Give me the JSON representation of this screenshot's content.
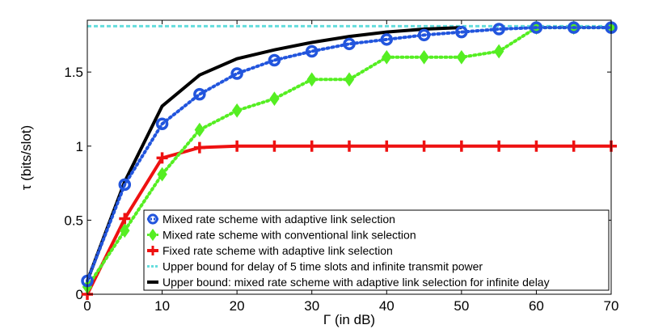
{
  "chart_data": {
    "type": "line",
    "title": "",
    "xlabel": "Γ (in dB)",
    "ylabel": "τ (bits/slot)",
    "xlim": [
      0,
      70
    ],
    "ylim": [
      0,
      1.85
    ],
    "xticks": [
      0,
      10,
      20,
      30,
      40,
      50,
      60,
      70
    ],
    "yticks": [
      0,
      0.5,
      1,
      1.5
    ],
    "ytick_labels": [
      "0",
      "0.5",
      "1",
      "1.5"
    ],
    "grid": false,
    "legend_position": "bottom-right",
    "series": [
      {
        "name": "Mixed rate scheme with adaptive link selection",
        "color": "#2255dd",
        "style": "dotted",
        "marker": "circle",
        "x": [
          0,
          5,
          10,
          15,
          20,
          25,
          30,
          35,
          40,
          45,
          50,
          55,
          60,
          65,
          70
        ],
        "y": [
          0.09,
          0.74,
          1.15,
          1.35,
          1.49,
          1.58,
          1.64,
          1.69,
          1.72,
          1.75,
          1.77,
          1.79,
          1.8,
          1.8,
          1.8
        ]
      },
      {
        "name": "Mixed rate scheme with conventional link selection",
        "color": "#55ee22",
        "style": "dotted",
        "marker": "diamond",
        "x": [
          0,
          5,
          10,
          15,
          20,
          25,
          30,
          35,
          40,
          45,
          50,
          55,
          60,
          65,
          70
        ],
        "y": [
          0.05,
          0.43,
          0.81,
          1.11,
          1.24,
          1.32,
          1.45,
          1.45,
          1.6,
          1.6,
          1.6,
          1.64,
          1.8,
          1.8,
          1.8
        ]
      },
      {
        "name": "Fixed rate scheme with adaptive link selection",
        "color": "#ee1111",
        "style": "solid",
        "marker": "plus",
        "x": [
          0,
          5,
          10,
          15,
          20,
          25,
          30,
          35,
          40,
          45,
          50,
          55,
          60,
          65,
          70
        ],
        "y": [
          0.0,
          0.51,
          0.92,
          0.99,
          1.0,
          1.0,
          1.0,
          1.0,
          1.0,
          1.0,
          1.0,
          1.0,
          1.0,
          1.0,
          1.0
        ]
      },
      {
        "name": "Upper bound for delay of 5 time slots and infinite transmit power",
        "color": "#66dddd",
        "style": "dashed",
        "marker": "none",
        "x": [
          0,
          70
        ],
        "y": [
          1.81,
          1.81
        ]
      },
      {
        "name": "Upper bound: mixed rate scheme with adaptive link selection for infinite delay",
        "color": "#000000",
        "style": "solid",
        "marker": "none",
        "x": [
          0,
          5,
          10,
          15,
          20,
          25,
          30,
          35,
          40,
          45,
          50
        ],
        "y": [
          0.09,
          0.76,
          1.27,
          1.48,
          1.59,
          1.65,
          1.7,
          1.74,
          1.77,
          1.79,
          1.8
        ]
      }
    ]
  }
}
